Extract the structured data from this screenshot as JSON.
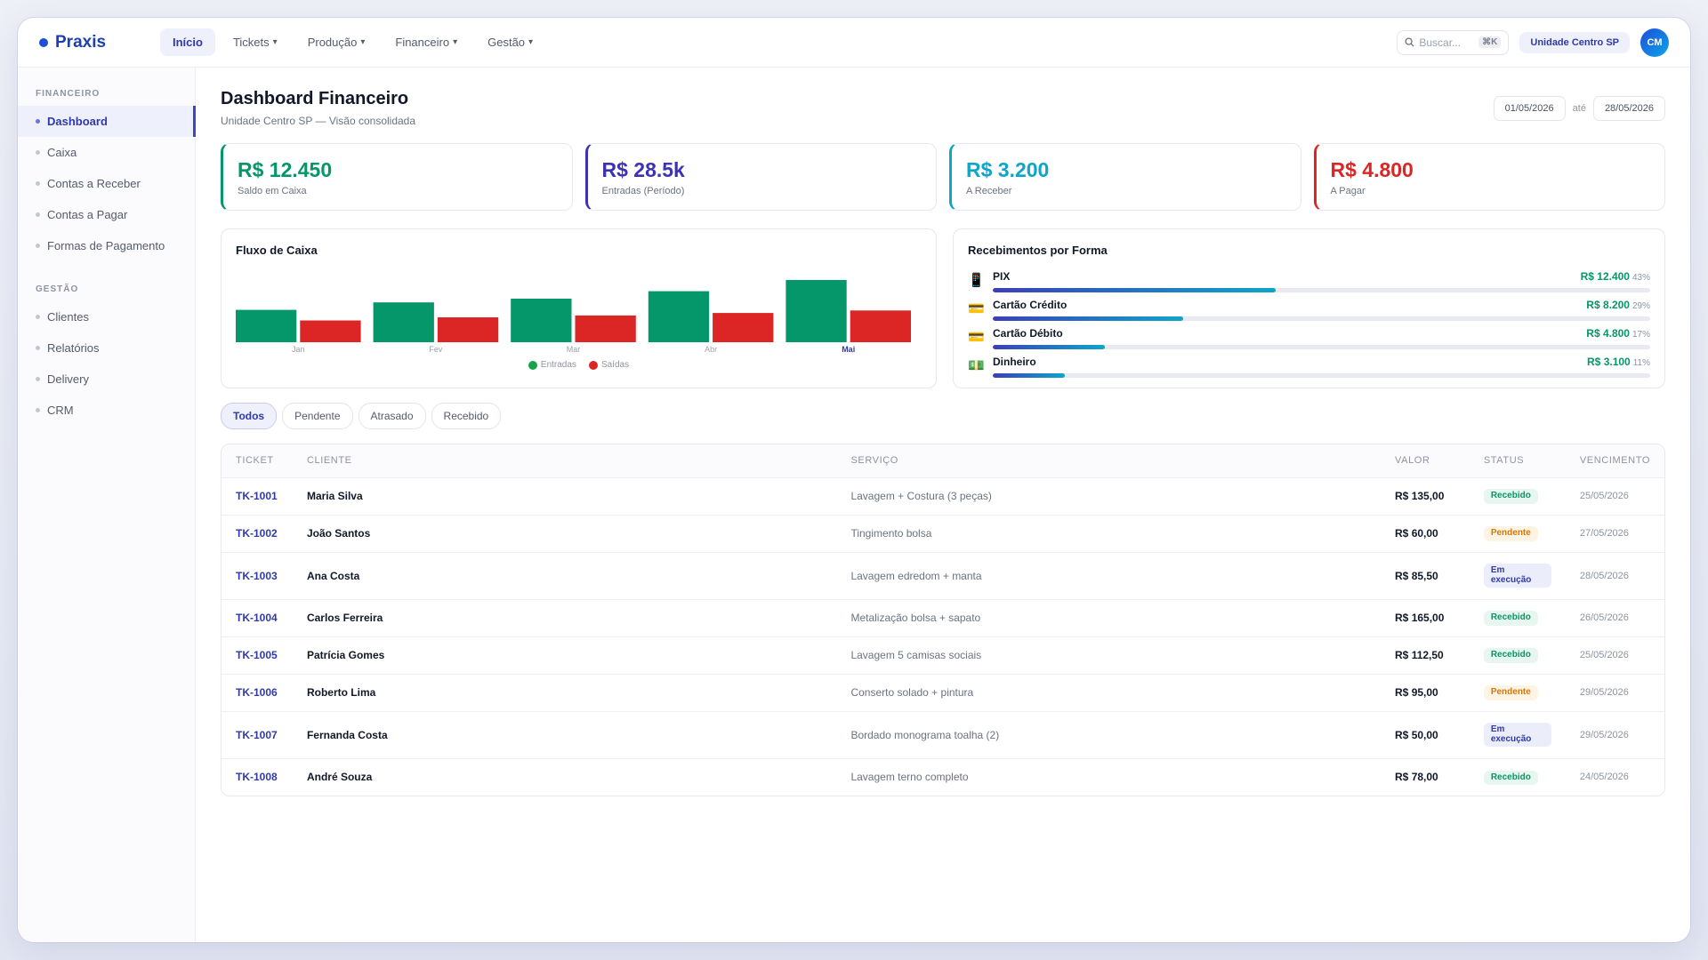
{
  "brand": {
    "name": "Praxis",
    "color": "#1e40af"
  },
  "nav": [
    {
      "label": "Início",
      "caret": ""
    },
    {
      "label": "Tickets",
      "caret": "▾"
    },
    {
      "label": "Produção",
      "caret": "▾"
    },
    {
      "label": "Financeiro",
      "caret": "▾"
    },
    {
      "label": "Gestão",
      "caret": "▾"
    }
  ],
  "search": {
    "placeholder": "Buscar...",
    "shortcut": "⌘K",
    "icon": "search-icon"
  },
  "unit_badge": "Unidade Centro SP",
  "avatar": "CM",
  "sidebar": {
    "sections": [
      {
        "title": "FINANCEIRO",
        "items": [
          "Dashboard",
          "Caixa",
          "Contas a Receber",
          "Contas a Pagar",
          "Formas de Pagamento"
        ]
      },
      {
        "title": "GESTÃO",
        "items": [
          "Clientes",
          "Relatórios",
          "Delivery",
          "CRM"
        ]
      }
    ]
  },
  "page": {
    "title": "Dashboard Financeiro",
    "subtitle": "Unidade Centro SP — Visão consolidada",
    "date_from": "01/05/2026",
    "date_sep": "até",
    "date_to": "28/05/2026"
  },
  "kpis": [
    {
      "value": "R$ 12.450",
      "label": "Saldo em Caixa",
      "color": "#059669"
    },
    {
      "value": "R$ 28.5k",
      "label": "Entradas (Período)",
      "color": "#3b32b5"
    },
    {
      "value": "R$ 3.200",
      "label": "A Receber",
      "color": "#0ea5c9"
    },
    {
      "value": "R$ 4.800",
      "label": "A Pagar",
      "color": "#dc2626"
    }
  ],
  "cashflow": {
    "title": "Fluxo de Caixa",
    "legend_in": "Entradas",
    "legend_out": "Saídas"
  },
  "chart_data": {
    "type": "bar",
    "title": "Fluxo de Caixa",
    "categories": [
      "Jan",
      "Fev",
      "Mar",
      "Abr",
      "Mai"
    ],
    "series": [
      {
        "name": "Entradas",
        "values": [
          52,
          64,
          70,
          82,
          100
        ],
        "color": "#059669"
      },
      {
        "name": "Saídas",
        "values": [
          35,
          40,
          43,
          47,
          51
        ],
        "color": "#dc2626"
      }
    ],
    "highlight_category": "Mai",
    "ylim": [
      0,
      100
    ],
    "grid": false,
    "legend": "bottom"
  },
  "payments": {
    "title": "Recebimentos por Forma",
    "items": [
      {
        "icon": "📱",
        "icon_name": "phone-icon",
        "name": "PIX",
        "amount": "R$ 12.400",
        "pct": "43%",
        "fill": 43
      },
      {
        "icon": "💳",
        "icon_name": "credit-card-icon",
        "name": "Cartão Crédito",
        "amount": "R$ 8.200",
        "pct": "29%",
        "fill": 29
      },
      {
        "icon": "💳",
        "icon_name": "debit-card-icon",
        "name": "Cartão Débito",
        "amount": "R$ 4.800",
        "pct": "17%",
        "fill": 17
      },
      {
        "icon": "💵",
        "icon_name": "cash-icon",
        "name": "Dinheiro",
        "amount": "R$ 3.100",
        "pct": "11%",
        "fill": 11
      }
    ]
  },
  "filters": [
    "Todos",
    "Pendente",
    "Atrasado",
    "Recebido"
  ],
  "table": {
    "headers": [
      "TICKET",
      "CLIENTE",
      "SERVIÇO",
      "VALOR",
      "STATUS",
      "VENCIMENTO"
    ],
    "rows": [
      {
        "ticket": "TK-1001",
        "client": "Maria Silva",
        "service": "Lavagem + Costura (3 peças)",
        "value": "R$ 135,00",
        "status": "Recebido",
        "due": "25/05/2026"
      },
      {
        "ticket": "TK-1002",
        "client": "João Santos",
        "service": "Tingimento bolsa",
        "value": "R$ 60,00",
        "status": "Pendente",
        "due": "27/05/2026"
      },
      {
        "ticket": "TK-1003",
        "client": "Ana Costa",
        "service": "Lavagem edredom + manta",
        "value": "R$ 85,50",
        "status": "Em execução",
        "due": "28/05/2026"
      },
      {
        "ticket": "TK-1004",
        "client": "Carlos Ferreira",
        "service": "Metalização bolsa + sapato",
        "value": "R$ 165,00",
        "status": "Recebido",
        "due": "26/05/2026"
      },
      {
        "ticket": "TK-1005",
        "client": "Patrícia Gomes",
        "service": "Lavagem 5 camisas sociais",
        "value": "R$ 112,50",
        "status": "Recebido",
        "due": "25/05/2026"
      },
      {
        "ticket": "TK-1006",
        "client": "Roberto Lima",
        "service": "Conserto solado + pintura",
        "value": "R$ 95,00",
        "status": "Pendente",
        "due": "29/05/2026"
      },
      {
        "ticket": "TK-1007",
        "client": "Fernanda Costa",
        "service": "Bordado monograma toalha (2)",
        "value": "R$ 50,00",
        "status": "Em execução",
        "due": "29/05/2026"
      },
      {
        "ticket": "TK-1008",
        "client": "André Souza",
        "service": "Lavagem terno completo",
        "value": "R$ 78,00",
        "status": "Recebido",
        "due": "24/05/2026"
      }
    ]
  }
}
